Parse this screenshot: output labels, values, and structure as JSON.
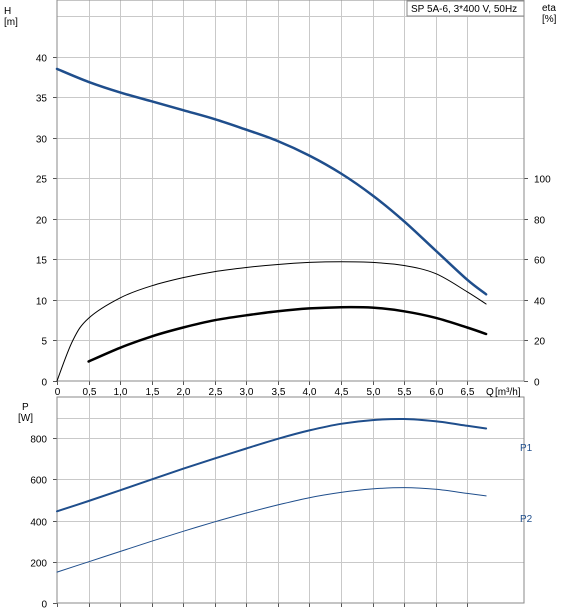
{
  "header": {
    "pump_label": "SP 5A-6, 3*400 V, 50Hz"
  },
  "chart_data": [
    {
      "type": "line",
      "title": "",
      "ylabel": "H",
      "yunit": "[m]",
      "y2label": "eta",
      "y2unit": "[%]",
      "xlabel": "Q",
      "xunit": "[m³/h]",
      "xlim": [
        0,
        7.4
      ],
      "ylim": [
        0,
        47
      ],
      "y2lim": [
        0,
        100
      ],
      "x_ticks": [
        "0",
        "0,5",
        "1,0",
        "1,5",
        "2,0",
        "2,5",
        "3,0",
        "3,5",
        "4,0",
        "4,5",
        "5,0",
        "5,5",
        "6,0",
        "6,5"
      ],
      "x_tick_values": [
        0,
        0.5,
        1.0,
        1.5,
        2.0,
        2.5,
        3.0,
        3.5,
        4.0,
        4.5,
        5.0,
        5.5,
        6.0,
        6.5
      ],
      "y_ticks": [
        "0",
        "5",
        "10",
        "15",
        "20",
        "25",
        "30",
        "35",
        "40"
      ],
      "y_tick_values": [
        0,
        5,
        10,
        15,
        20,
        25,
        30,
        35,
        40
      ],
      "y2_ticks": [
        "0",
        "20",
        "40",
        "60",
        "80",
        "100"
      ],
      "y2_tick_values": [
        0,
        20,
        40,
        60,
        80,
        100
      ],
      "grid": true,
      "series": [
        {
          "axis": "y",
          "color": "#1f4e8c",
          "width": 2.5,
          "x": [
            -0.05,
            0.5,
            1.0,
            1.5,
            2.0,
            2.5,
            3.0,
            3.5,
            4.0,
            4.5,
            5.0,
            5.5,
            6.0,
            6.5,
            6.8
          ],
          "values": [
            38.5,
            36.9,
            35.6,
            34.5,
            33.4,
            32.3,
            31.0,
            29.6,
            27.8,
            25.6,
            22.9,
            19.7,
            16.1,
            12.5,
            10.7
          ]
        },
        {
          "axis": "y2",
          "color": "#000000",
          "width": 1,
          "x": [
            0,
            0.25,
            0.5,
            1.0,
            1.5,
            2.0,
            2.5,
            3.0,
            3.5,
            4.0,
            4.5,
            5.0,
            5.5,
            6.0,
            6.5,
            6.8
          ],
          "values": [
            0,
            20,
            31,
            41,
            47,
            51,
            54,
            56,
            57.5,
            58.5,
            58.8,
            58.5,
            57,
            53,
            44,
            38
          ]
        },
        {
          "axis": "y",
          "color": "#000000",
          "width": 2.5,
          "x": [
            0.5,
            1.0,
            1.5,
            2.0,
            2.5,
            3.0,
            3.5,
            4.0,
            4.5,
            5.0,
            5.5,
            6.0,
            6.5,
            6.8
          ],
          "values": [
            2.4,
            4.1,
            5.5,
            6.6,
            7.5,
            8.1,
            8.6,
            8.95,
            9.1,
            9.05,
            8.6,
            7.8,
            6.6,
            5.8
          ]
        }
      ]
    },
    {
      "type": "line",
      "title": "",
      "ylabel": "P",
      "yunit": "[W]",
      "xlim": [
        0,
        7.4
      ],
      "ylim": [
        0,
        1000
      ],
      "y_ticks": [
        "0",
        "200",
        "400",
        "600",
        "800"
      ],
      "y_tick_values": [
        0,
        200,
        400,
        600,
        800
      ],
      "grid": true,
      "series": [
        {
          "name": "P1",
          "color": "#1f4e8c",
          "width": 2,
          "x": [
            -0.05,
            0.5,
            1.0,
            1.5,
            2.0,
            2.5,
            3.0,
            3.5,
            4.0,
            4.5,
            5.0,
            5.5,
            6.0,
            6.5,
            6.8
          ],
          "values": [
            445,
            495,
            547,
            600,
            652,
            702,
            750,
            797,
            838,
            870,
            888,
            893,
            882,
            860,
            847
          ]
        },
        {
          "name": "P2",
          "color": "#1f4e8c",
          "width": 1,
          "x": [
            -0.05,
            0.5,
            1.0,
            1.5,
            2.0,
            2.5,
            3.0,
            3.5,
            4.0,
            4.5,
            5.0,
            5.5,
            6.0,
            6.5,
            6.8
          ],
          "values": [
            150,
            200,
            250,
            300,
            348,
            394,
            437,
            476,
            511,
            537,
            554,
            560,
            552,
            532,
            520
          ]
        }
      ]
    }
  ]
}
